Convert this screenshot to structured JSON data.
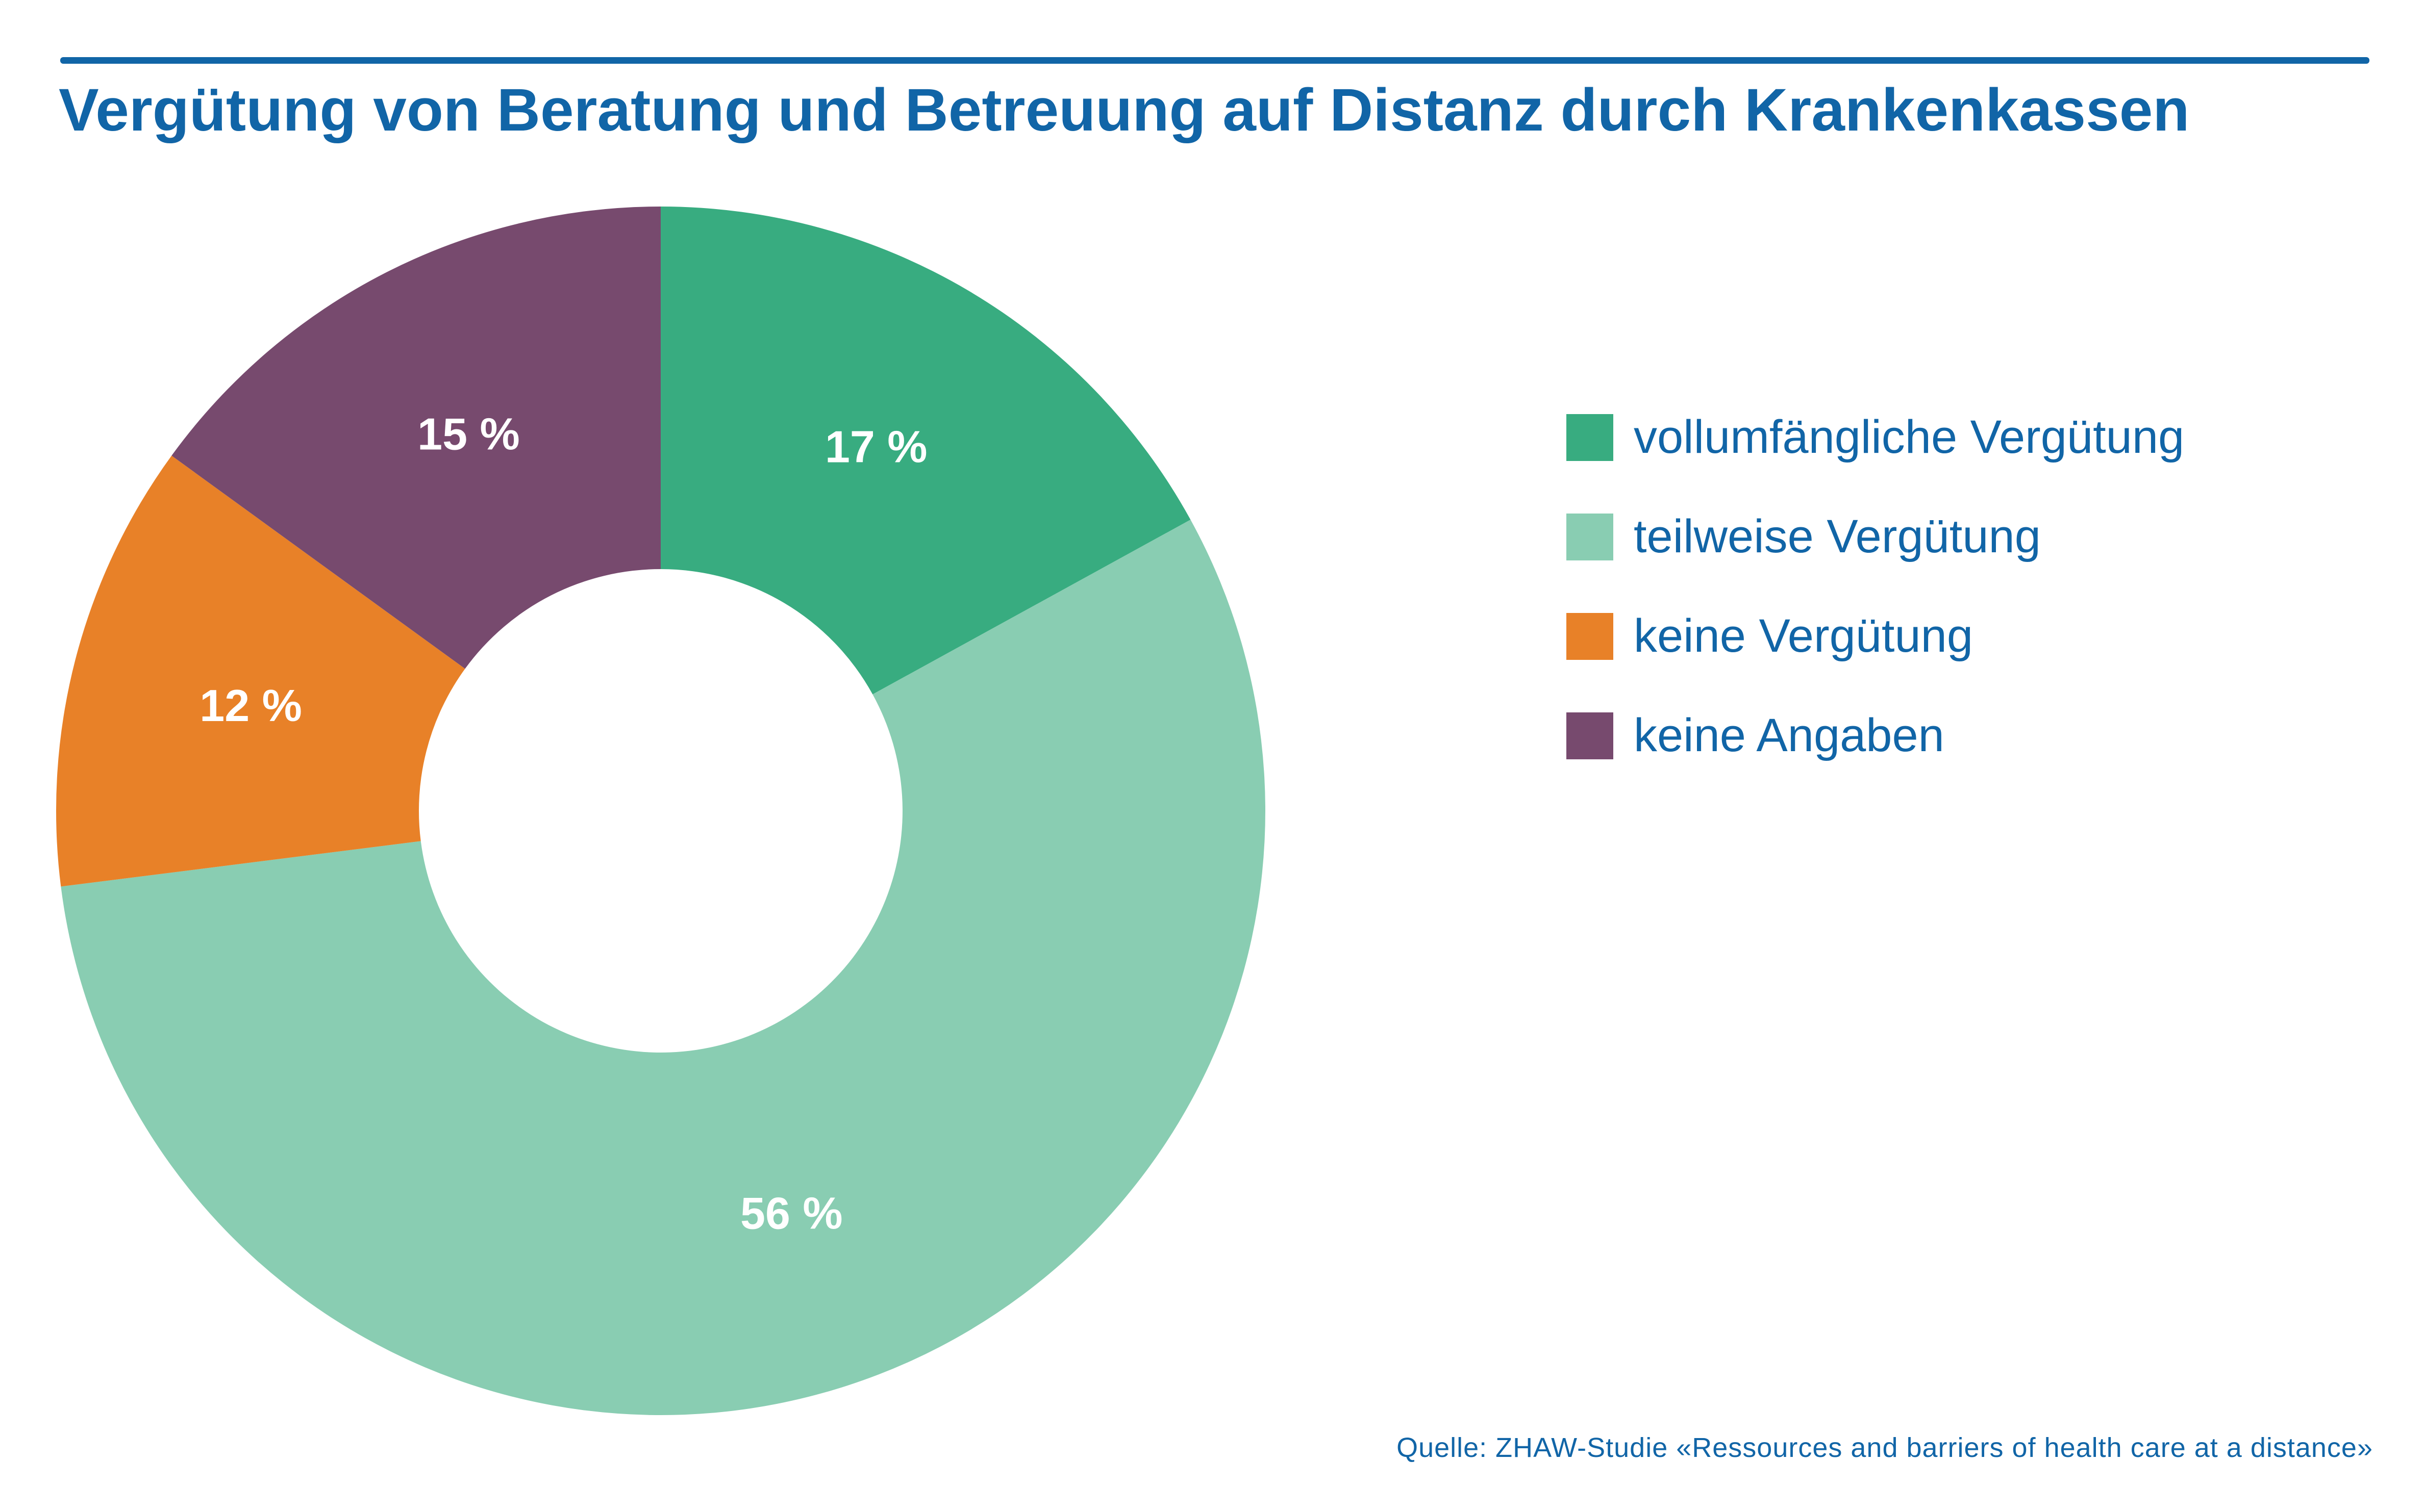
{
  "colors": {
    "accent": "#1165a7",
    "voll": "#38ac80",
    "teil": "#89cdb2",
    "keine": "#e88128",
    "angaben": "#774a6e",
    "slice_label": "#ffffff"
  },
  "chart_data": {
    "type": "pie",
    "title": "Vergütung von Beratung und Betreuung auf Distanz durch Krankenkassen",
    "inner_radius_ratio": 0.4,
    "start_angle_deg": 0,
    "direction": "clockwise",
    "legend_position": "right",
    "slices": [
      {
        "label": "vollumfängliche Vergütung",
        "value": 17,
        "display": "17 %",
        "color": "#38ac80"
      },
      {
        "label": "teilweise Vergütung",
        "value": 56,
        "display": "56 %",
        "color": "#89cdb2"
      },
      {
        "label": "keine Vergütung",
        "value": 12,
        "display": "12 %",
        "color": "#e88128"
      },
      {
        "label": "keine Angaben",
        "value": 15,
        "display": "15 %",
        "color": "#774a6e"
      }
    ]
  },
  "legend": {
    "items": [
      {
        "label": "vollumfängliche Vergütung",
        "color": "#38ac80"
      },
      {
        "label": "teilweise Vergütung",
        "color": "#89cdb2"
      },
      {
        "label": "keine Vergütung",
        "color": "#e88128"
      },
      {
        "label": "keine Angaben",
        "color": "#774a6e"
      }
    ]
  },
  "source": "Quelle: ZHAW-Studie «Ressources and barriers of health care at a distance»"
}
